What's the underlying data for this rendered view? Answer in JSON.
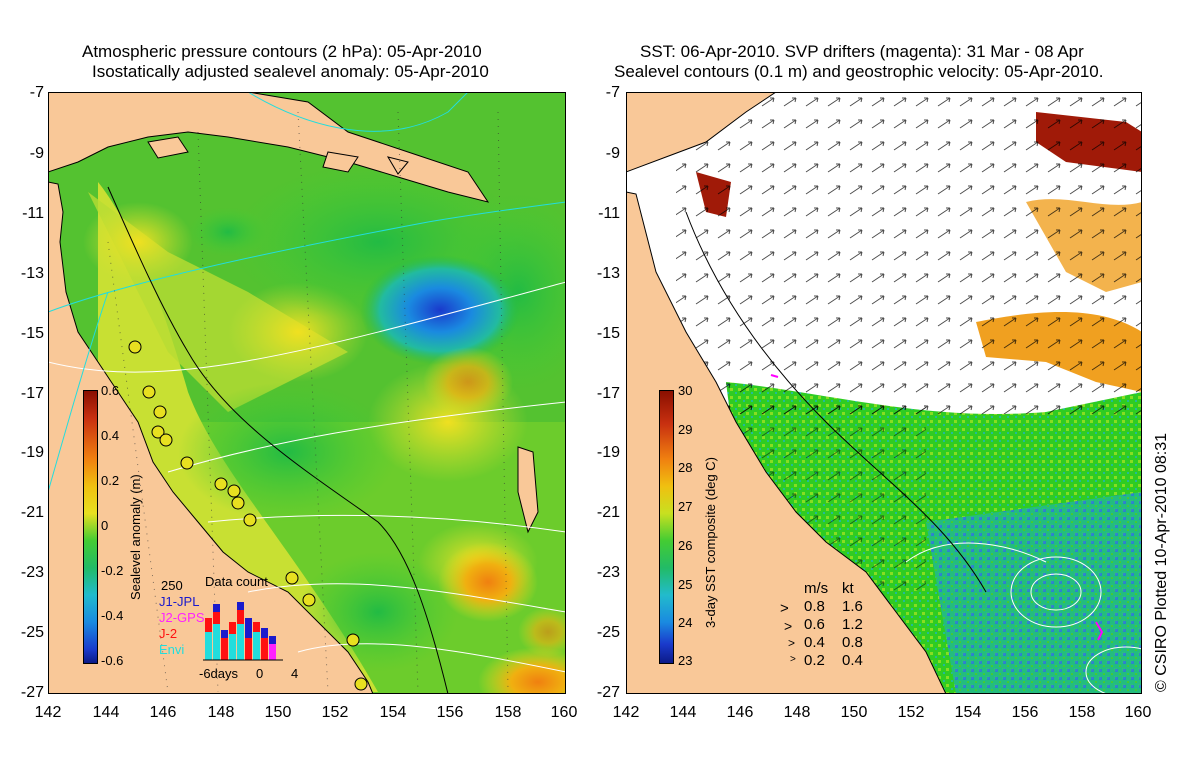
{
  "left_panel": {
    "title_line1": "Atmospheric pressure contours (2 hPa): 05-Apr-2010",
    "title_line2": "Isostatically adjusted sealevel anomaly: 05-Apr-2010",
    "colorbar": {
      "label": "Sealevel anomaly (m)",
      "ticks": [
        "0.6",
        "0.4",
        "0.2",
        "0",
        "-0.2",
        "-0.4",
        "-0.6"
      ]
    },
    "data_count": {
      "title": "Data count",
      "max_label": "250",
      "legend": [
        {
          "label": "J1-JPL",
          "color": "#1a1acc"
        },
        {
          "label": "J2-GPS",
          "color": "#ff22ff"
        },
        {
          "label": "J-2",
          "color": "#ff1111"
        },
        {
          "label": "Envi",
          "color": "#22dddd"
        }
      ],
      "x_labels": [
        "-6days",
        "0",
        "4"
      ]
    }
  },
  "right_panel": {
    "title_line1": "SST: 06-Apr-2010. SVP drifters (magenta): 31 Mar - 08 Apr",
    "title_line2": "Sealevel contours (0.1 m) and geostrophic velocity: 05-Apr-2010.",
    "colorbar": {
      "label": "3-day SST composite (deg C)",
      "ticks": [
        "30",
        "29",
        "28",
        "27",
        "26",
        "25",
        "24",
        "23"
      ]
    },
    "velocity_legend": {
      "header_ms": "m/s",
      "header_kt": "kt",
      "rows": [
        {
          "ms": "0.8",
          "kt": "1.6"
        },
        {
          "ms": "0.6",
          "kt": "1.2"
        },
        {
          "ms": "0.4",
          "kt": "0.8"
        },
        {
          "ms": "0.2",
          "kt": "0.4"
        }
      ]
    }
  },
  "axes": {
    "y_ticks": [
      "-7",
      "-9",
      "-11",
      "-13",
      "-15",
      "-17",
      "-19",
      "-21",
      "-23",
      "-25",
      "-27"
    ],
    "x_ticks": [
      "142",
      "144",
      "146",
      "148",
      "150",
      "152",
      "154",
      "156",
      "158",
      "160"
    ]
  },
  "credit": "© CSIRO Plotted 10-Apr-2010 08:31",
  "colors": {
    "land": "#f9c898",
    "sla_base": "#c8e033",
    "sst_base": "#22cc22",
    "cloud": "#ffffff",
    "drifter": "#ff00ff"
  }
}
